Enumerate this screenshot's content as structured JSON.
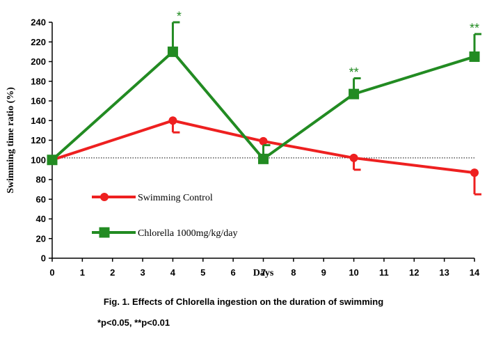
{
  "chart_data": {
    "type": "line",
    "x": [
      0,
      4,
      7,
      10,
      14
    ],
    "xticks": [
      0,
      1,
      2,
      3,
      4,
      5,
      6,
      7,
      8,
      9,
      10,
      11,
      12,
      13,
      14
    ],
    "yticks": [
      0,
      20,
      40,
      60,
      80,
      100,
      120,
      140,
      160,
      180,
      200,
      220,
      240
    ],
    "xlim": [
      0,
      14
    ],
    "ylim": [
      0,
      240
    ],
    "xlabel": "Days",
    "ylabel": "Swimming time ratio (%)",
    "reference_line": 102,
    "series": [
      {
        "name": "Swimming Control",
        "color": "#ee2020",
        "marker": "circle",
        "values": [
          100,
          140,
          119,
          102,
          87
        ],
        "errors_low": [
          0,
          12,
          0,
          12,
          22
        ],
        "errors_high": [
          0,
          0,
          0,
          0,
          0
        ]
      },
      {
        "name": "Chlorella 1000mg/kg/day",
        "color": "#228b22",
        "marker": "square",
        "values": [
          100,
          210,
          101,
          167,
          205
        ],
        "errors_low": [
          0,
          0,
          0,
          0,
          0
        ],
        "errors_high": [
          0,
          30,
          14,
          16,
          23
        ]
      }
    ],
    "annotations": [
      {
        "x": 4,
        "y": 241,
        "text": "*"
      },
      {
        "x": 10,
        "y": 184,
        "text": "**"
      },
      {
        "x": 14,
        "y": 229,
        "text": "**"
      }
    ],
    "title": "Fig. 1. Effects of Chlorella ingestion on the duration of swimming",
    "note": "*p<0.05, **p<0.01"
  }
}
